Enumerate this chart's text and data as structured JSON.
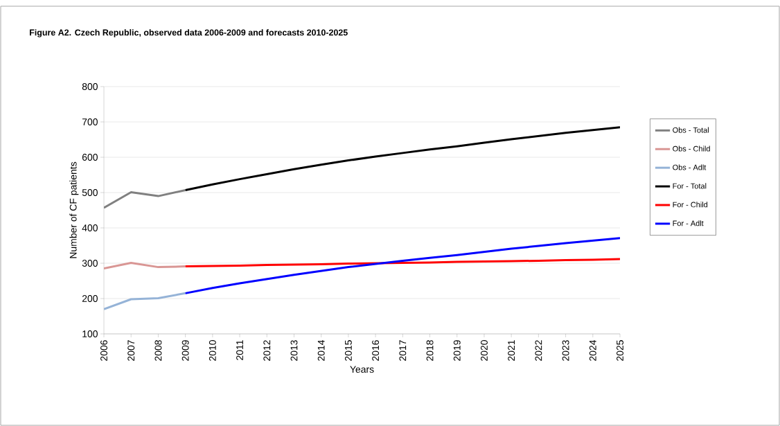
{
  "chart_data": {
    "type": "line",
    "title": "Figure A2. Czech Republic, observed data 2006-2009 and forecasts 2010-2025",
    "xlabel": "Years",
    "ylabel": "Number of CF patients",
    "xlim": [
      2006,
      2025
    ],
    "xticks": [
      2006,
      2007,
      2008,
      2009,
      2010,
      2011,
      2012,
      2013,
      2014,
      2015,
      2016,
      2017,
      2018,
      2019,
      2020,
      2021,
      2022,
      2023,
      2024,
      2025
    ],
    "ylim": [
      100,
      800
    ],
    "yticks": [
      100,
      200,
      300,
      400,
      500,
      600,
      700,
      800
    ],
    "grid": "y",
    "legend": "right",
    "marker": "none",
    "line_style": "solid",
    "series": [
      {
        "name": "Obs - Total",
        "color": "#808080",
        "x": [
          2006,
          2007,
          2008,
          2009
        ],
        "values": [
          457,
          501,
          490,
          507
        ]
      },
      {
        "name": "Obs - Child",
        "color": "#d99694",
        "x": [
          2006,
          2007,
          2008,
          2009
        ],
        "values": [
          285,
          301,
          289,
          291
        ]
      },
      {
        "name": "Obs - Adlt",
        "color": "#95b3d7",
        "x": [
          2006,
          2007,
          2008,
          2009
        ],
        "values": [
          170,
          198,
          201,
          215
        ]
      },
      {
        "name": "For - Total",
        "color": "#000000",
        "x": [
          2009,
          2010,
          2011,
          2012,
          2013,
          2014,
          2015,
          2016,
          2017,
          2018,
          2019,
          2020,
          2021,
          2022,
          2023,
          2024,
          2025
        ],
        "values": [
          507,
          523,
          538,
          552,
          566,
          579,
          591,
          602,
          612,
          622,
          631,
          641,
          651,
          660,
          669,
          677,
          685
        ]
      },
      {
        "name": "For - Child",
        "color": "#ff0000",
        "x": [
          2009,
          2010,
          2011,
          2012,
          2013,
          2014,
          2015,
          2016,
          2017,
          2018,
          2019,
          2020,
          2021,
          2022,
          2023,
          2024,
          2025
        ],
        "values": [
          291,
          292,
          293,
          295,
          296,
          297,
          299,
          300,
          301,
          302,
          304,
          305,
          306,
          307,
          309,
          310,
          312
        ]
      },
      {
        "name": "For - Adlt",
        "color": "#0000ff",
        "x": [
          2009,
          2010,
          2011,
          2012,
          2013,
          2014,
          2015,
          2016,
          2017,
          2018,
          2019,
          2020,
          2021,
          2022,
          2023,
          2024,
          2025
        ],
        "values": [
          215,
          230,
          243,
          255,
          267,
          278,
          289,
          298,
          307,
          315,
          323,
          332,
          341,
          349,
          357,
          364,
          371
        ]
      }
    ]
  }
}
